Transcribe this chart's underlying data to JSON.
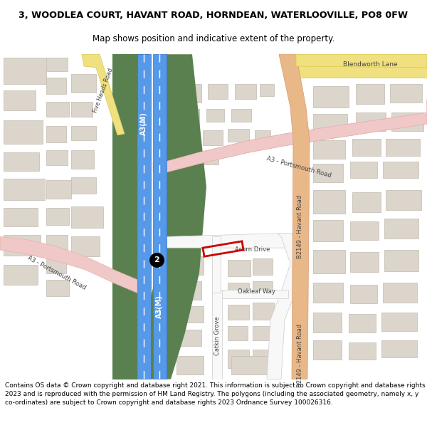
{
  "title_line1": "3, WOODLEA COURT, HAVANT ROAD, HORNDEAN, WATERLOOVILLE, PO8 0FW",
  "title_line2": "Map shows position and indicative extent of the property.",
  "footer": "Contains OS data © Crown copyright and database right 2021. This information is subject to Crown copyright and database rights 2023 and is reproduced with the permission of HM Land Registry. The polygons (including the associated geometry, namely x, y co-ordinates) are subject to Crown copyright and database rights 2023 Ordnance Survey 100026316.",
  "map_bg": "#f0ede8",
  "building_color": "#dbd5cc",
  "building_outline": "#c8c2b8",
  "green_area": "#5a8050",
  "green_area2": "#6a9060",
  "motorway_blue": "#5599e8",
  "motorway_blue_border": "#3377cc",
  "road_pink": "#f0c8c8",
  "road_pink_border": "#e8b0b0",
  "road_orange": "#e8b888",
  "road_orange_border": "#d89870",
  "road_yellow": "#f0e080",
  "road_yellow_border": "#d8c850",
  "road_white": "#f8f8f8",
  "road_white_border": "#cccccc",
  "red_plot": "#cc0000",
  "label_dark": "#444444",
  "white": "#ffffff",
  "black": "#111111"
}
